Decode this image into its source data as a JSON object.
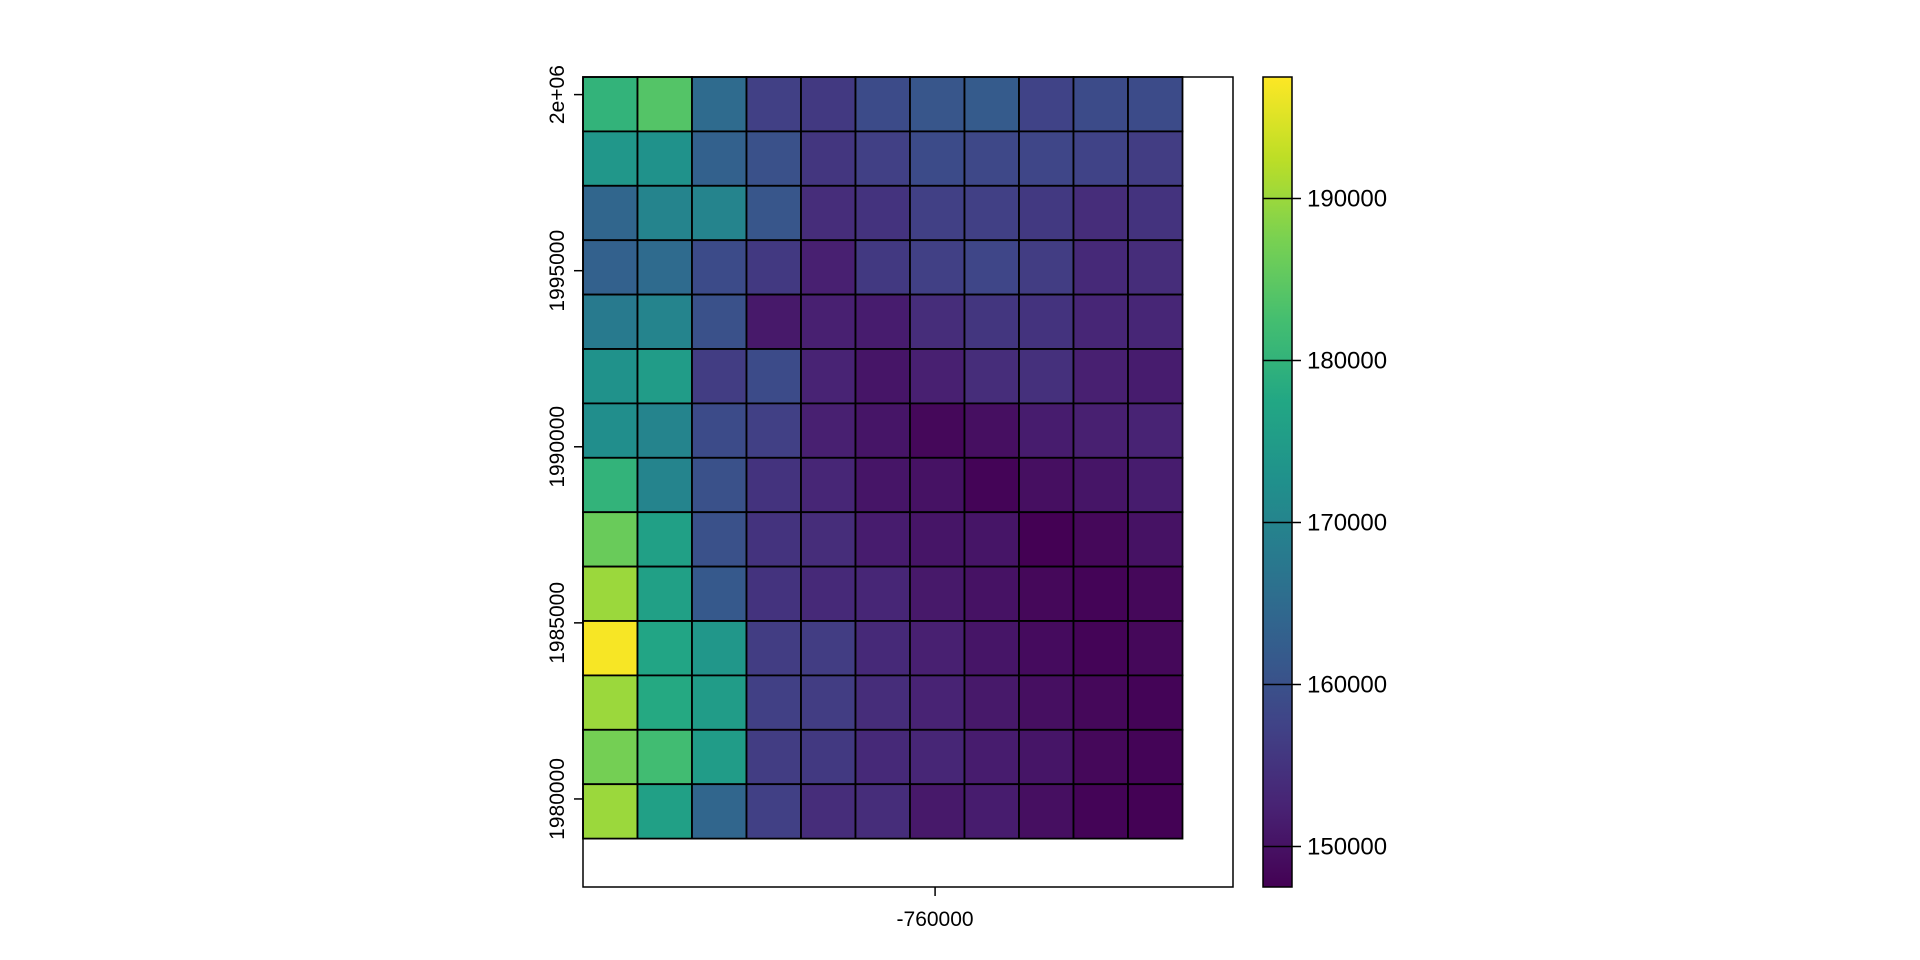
{
  "chart_data": {
    "type": "heatmap",
    "title": "",
    "xlabel": "",
    "ylabel": "",
    "grid": false,
    "rows": 14,
    "cols": 11,
    "x_ticks": [
      {
        "value": -760000,
        "label": "-760000"
      }
    ],
    "x_range": [
      -766500,
      -754500
    ],
    "y_ticks": [
      {
        "value": 1980000,
        "label": "1980000"
      },
      {
        "value": 1985000,
        "label": "1985000"
      },
      {
        "value": 1990000,
        "label": "1990000"
      },
      {
        "value": 1995000,
        "label": "1995000"
      },
      {
        "value": 2000000,
        "label": "2e+06"
      }
    ],
    "y_range": [
      1977500,
      2000500
    ],
    "colorbar": {
      "range": [
        147500,
        197500
      ],
      "ticks": [
        {
          "value": 150000,
          "label": "150000"
        },
        {
          "value": 160000,
          "label": "160000"
        },
        {
          "value": 170000,
          "label": "170000"
        },
        {
          "value": 180000,
          "label": "180000"
        },
        {
          "value": 190000,
          "label": "190000"
        }
      ],
      "colormap": "viridis"
    },
    "values": [
      [
        180000,
        184000,
        165000,
        157000,
        156000,
        159000,
        161000,
        162000,
        157500,
        159000,
        159000
      ],
      [
        174000,
        173000,
        163000,
        160000,
        155500,
        157000,
        159000,
        158500,
        158000,
        157500,
        156500
      ],
      [
        164000,
        170000,
        170000,
        161000,
        154000,
        155000,
        157000,
        157000,
        156000,
        154000,
        155000
      ],
      [
        163000,
        165000,
        159000,
        156000,
        152000,
        156000,
        157000,
        158000,
        156500,
        153500,
        154000
      ],
      [
        168000,
        170000,
        160000,
        151000,
        152000,
        151500,
        154000,
        155500,
        155000,
        153000,
        153000
      ],
      [
        173000,
        175000,
        156500,
        159000,
        152500,
        150500,
        152000,
        154000,
        154500,
        152000,
        151500
      ],
      [
        172000,
        170000,
        159000,
        157000,
        152000,
        150500,
        148500,
        149500,
        151500,
        152000,
        152500
      ],
      [
        180000,
        170000,
        160000,
        155000,
        153000,
        150500,
        150000,
        148000,
        149500,
        150500,
        151500
      ],
      [
        186000,
        176000,
        160000,
        155000,
        154000,
        151500,
        150500,
        150500,
        147500,
        148500,
        150000
      ],
      [
        190000,
        176000,
        161500,
        155000,
        153500,
        153000,
        151000,
        150000,
        148500,
        148000,
        148500
      ],
      [
        197000,
        177000,
        174000,
        156500,
        156500,
        153500,
        152000,
        150500,
        149000,
        148000,
        148500
      ],
      [
        190000,
        178000,
        175000,
        157000,
        156500,
        154000,
        152500,
        151000,
        149500,
        148500,
        148000
      ],
      [
        187000,
        182000,
        175000,
        156500,
        156000,
        153500,
        153000,
        151500,
        150500,
        148500,
        148000
      ],
      [
        190000,
        176000,
        164000,
        157000,
        154000,
        154000,
        151000,
        151500,
        149500,
        148000,
        147700
      ]
    ]
  }
}
